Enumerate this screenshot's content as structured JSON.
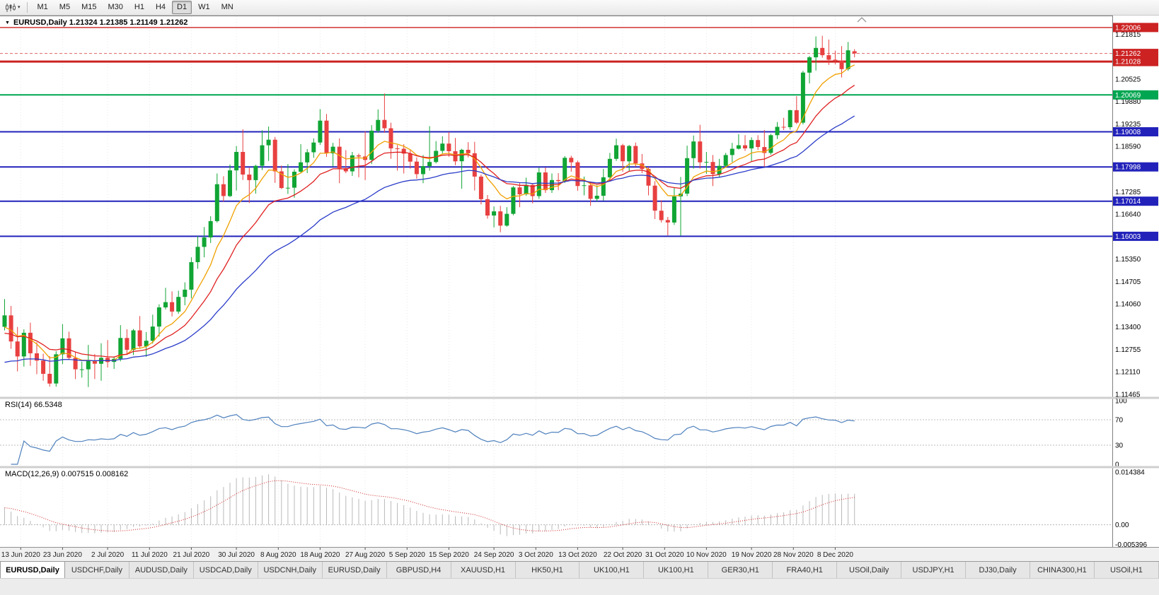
{
  "toolbar": {
    "timeframes": [
      "M1",
      "M5",
      "M15",
      "M30",
      "H1",
      "H4",
      "D1",
      "W1",
      "MN"
    ],
    "selected": "D1"
  },
  "icons": {
    "title_arrow": "▼",
    "toolbar_caret": "▾"
  },
  "chart": {
    "title": "EURUSD,Daily 1.21324 1.21385 1.21149 1.21262",
    "symbol": "EURUSD",
    "timeframe": "Daily",
    "open": "1.21324",
    "high": "1.21385",
    "low": "1.21149",
    "close": "1.21262"
  },
  "chart_data": {
    "type": "candlestick",
    "title": "EURUSD Daily candlestick chart with moving averages, horizontal levels, RSI(14) and MACD(12,26,9)",
    "style": {
      "up": "#10a534",
      "down": "#e84040",
      "grid": "#e8e8e8",
      "current_line": "#dd6666",
      "current_tag": "#cc2222",
      "macd_hist": "#b9b9b9",
      "macd_signal": "#d02020"
    },
    "price": {
      "ylim": [
        1.114,
        1.2233
      ],
      "current": 1.21262,
      "axis_labels": [
        1.21815,
        1.20525,
        1.1988,
        1.19235,
        1.1859,
        1.17285,
        1.1664,
        1.1535,
        1.14705,
        1.1406,
        1.134,
        1.12755,
        1.1211,
        1.11465
      ],
      "hlines": [
        {
          "value": 1.22006,
          "color": "#cc2222",
          "width": 1.4
        },
        {
          "value": 1.21028,
          "color": "#cc2222",
          "width": 3
        },
        {
          "value": 1.20069,
          "color": "#00a651",
          "width": 2
        },
        {
          "value": 1.19008,
          "color": "#2222bb",
          "width": 2
        },
        {
          "value": 1.17998,
          "color": "#2222bb",
          "width": 2
        },
        {
          "value": 1.17014,
          "color": "#2222bb",
          "width": 2
        },
        {
          "value": 1.16003,
          "color": "#2222bb",
          "width": 2
        }
      ],
      "ma": [
        {
          "period": 8,
          "seed": 1.133,
          "color": "#f0a000"
        },
        {
          "period": 16,
          "seed": 1.1315,
          "color": "#e02020"
        },
        {
          "period": 34,
          "seed": 1.123,
          "color": "#2b3cc8"
        }
      ],
      "candles": [
        [
          1.134,
          1.142,
          1.133,
          1.1373
        ],
        [
          1.1373,
          1.14,
          1.1277,
          1.1298
        ],
        [
          1.1298,
          1.134,
          1.1212,
          1.1255
        ],
        [
          1.1255,
          1.1333,
          1.1226,
          1.1323
        ],
        [
          1.1323,
          1.1352,
          1.1228,
          1.1264
        ],
        [
          1.1264,
          1.1296,
          1.1204,
          1.1243
        ],
        [
          1.1243,
          1.1263,
          1.1185,
          1.1205
        ],
        [
          1.1205,
          1.1256,
          1.1168,
          1.1177
        ],
        [
          1.1177,
          1.127,
          1.1168,
          1.1261
        ],
        [
          1.1261,
          1.1348,
          1.1233,
          1.1307
        ],
        [
          1.1307,
          1.1326,
          1.1245,
          1.1251
        ],
        [
          1.1251,
          1.1268,
          1.119,
          1.1218
        ],
        [
          1.1218,
          1.124,
          1.1194,
          1.1218
        ],
        [
          1.1218,
          1.1288,
          1.1167,
          1.1242
        ],
        [
          1.1242,
          1.1262,
          1.119,
          1.1234
        ],
        [
          1.1234,
          1.1293,
          1.1185,
          1.1251
        ],
        [
          1.1251,
          1.1302,
          1.1223,
          1.1239
        ],
        [
          1.1239,
          1.1254,
          1.1219,
          1.1248
        ],
        [
          1.1248,
          1.1345,
          1.1241,
          1.1308
        ],
        [
          1.1308,
          1.1333,
          1.1259,
          1.1274
        ],
        [
          1.1274,
          1.1334,
          1.1259,
          1.133
        ],
        [
          1.133,
          1.1371,
          1.1277,
          1.1284
        ],
        [
          1.1284,
          1.1325,
          1.1254,
          1.13
        ],
        [
          1.13,
          1.1375,
          1.1292,
          1.1341
        ],
        [
          1.1341,
          1.1405,
          1.1312,
          1.1396
        ],
        [
          1.1396,
          1.1452,
          1.139,
          1.1411
        ],
        [
          1.1411,
          1.1442,
          1.137,
          1.1384
        ],
        [
          1.1384,
          1.1444,
          1.1378,
          1.1426
        ],
        [
          1.1426,
          1.1468,
          1.1402,
          1.1447
        ],
        [
          1.1447,
          1.154,
          1.1422,
          1.1526
        ],
        [
          1.1526,
          1.1601,
          1.1507,
          1.157
        ],
        [
          1.157,
          1.1627,
          1.154,
          1.1597
        ],
        [
          1.1597,
          1.1658,
          1.1581,
          1.1644
        ],
        [
          1.1644,
          1.1781,
          1.164,
          1.175
        ],
        [
          1.175,
          1.1773,
          1.17,
          1.1716
        ],
        [
          1.1716,
          1.1807,
          1.1713,
          1.179
        ],
        [
          1.179,
          1.186,
          1.1732,
          1.1843
        ],
        [
          1.1843,
          1.1908,
          1.1762,
          1.1778
        ],
        [
          1.1778,
          1.1797,
          1.1696,
          1.1762
        ],
        [
          1.1762,
          1.1806,
          1.1723,
          1.1803
        ],
        [
          1.1803,
          1.1905,
          1.1791,
          1.1862
        ],
        [
          1.1862,
          1.1916,
          1.1817,
          1.1878
        ],
        [
          1.1878,
          1.1886,
          1.1754,
          1.1787
        ],
        [
          1.1787,
          1.1804,
          1.1736,
          1.1739
        ],
        [
          1.1739,
          1.1808,
          1.1722,
          1.174
        ],
        [
          1.174,
          1.1793,
          1.1711,
          1.1786
        ],
        [
          1.1786,
          1.1865,
          1.1781,
          1.1813
        ],
        [
          1.1813,
          1.1851,
          1.1782,
          1.1842
        ],
        [
          1.1842,
          1.1882,
          1.1826,
          1.187
        ],
        [
          1.187,
          1.1966,
          1.1863,
          1.1933
        ],
        [
          1.1933,
          1.1952,
          1.1829,
          1.1839
        ],
        [
          1.1839,
          1.1869,
          1.1801,
          1.1858
        ],
        [
          1.1858,
          1.1882,
          1.1753,
          1.1796
        ],
        [
          1.1796,
          1.1848,
          1.1782,
          1.1787
        ],
        [
          1.1787,
          1.1843,
          1.1774,
          1.1833
        ],
        [
          1.1833,
          1.1838,
          1.177,
          1.183
        ],
        [
          1.183,
          1.1902,
          1.1762,
          1.182
        ],
        [
          1.182,
          1.192,
          1.1808,
          1.1904
        ],
        [
          1.1904,
          1.1965,
          1.1898,
          1.1935
        ],
        [
          1.1935,
          1.2011,
          1.1898,
          1.1911
        ],
        [
          1.1911,
          1.1927,
          1.1823,
          1.1853
        ],
        [
          1.1853,
          1.1863,
          1.1789,
          1.1852
        ],
        [
          1.1852,
          1.1865,
          1.1781,
          1.1838
        ],
        [
          1.1838,
          1.1848,
          1.1795,
          1.1815
        ],
        [
          1.1815,
          1.1827,
          1.1766,
          1.1779
        ],
        [
          1.1779,
          1.1834,
          1.1753,
          1.1802
        ],
        [
          1.1802,
          1.1917,
          1.1789,
          1.1814
        ],
        [
          1.1814,
          1.1874,
          1.181,
          1.1846
        ],
        [
          1.1846,
          1.1888,
          1.1839,
          1.1867
        ],
        [
          1.1867,
          1.19,
          1.1829,
          1.1845
        ],
        [
          1.1845,
          1.1883,
          1.1805,
          1.1816
        ],
        [
          1.1816,
          1.1852,
          1.1737,
          1.1849
        ],
        [
          1.1849,
          1.1871,
          1.1827,
          1.1839
        ],
        [
          1.1839,
          1.1872,
          1.1732,
          1.1772
        ],
        [
          1.1772,
          1.1778,
          1.1692,
          1.1707
        ],
        [
          1.1707,
          1.1719,
          1.1651,
          1.166
        ],
        [
          1.166,
          1.1686,
          1.1626,
          1.1672
        ],
        [
          1.1672,
          1.1688,
          1.1612,
          1.1631
        ],
        [
          1.1631,
          1.1684,
          1.1628,
          1.1665
        ],
        [
          1.1665,
          1.1745,
          1.1661,
          1.1741
        ],
        [
          1.1741,
          1.1755,
          1.1684,
          1.1721
        ],
        [
          1.1721,
          1.1769,
          1.1717,
          1.1748
        ],
        [
          1.1748,
          1.1751,
          1.1695,
          1.1716
        ],
        [
          1.1716,
          1.1798,
          1.1708,
          1.1784
        ],
        [
          1.1784,
          1.1798,
          1.1725,
          1.1733
        ],
        [
          1.1733,
          1.1781,
          1.1725,
          1.1762
        ],
        [
          1.1762,
          1.1782,
          1.1733,
          1.1759
        ],
        [
          1.1759,
          1.1831,
          1.1754,
          1.1826
        ],
        [
          1.1826,
          1.1832,
          1.1786,
          1.1813
        ],
        [
          1.1813,
          1.1818,
          1.1731,
          1.1745
        ],
        [
          1.1745,
          1.1772,
          1.1718,
          1.1747
        ],
        [
          1.1747,
          1.1758,
          1.1688,
          1.1708
        ],
        [
          1.1708,
          1.1747,
          1.1701,
          1.1717
        ],
        [
          1.1717,
          1.1794,
          1.1703,
          1.177
        ],
        [
          1.177,
          1.184,
          1.176,
          1.1823
        ],
        [
          1.1823,
          1.1881,
          1.1817,
          1.1862
        ],
        [
          1.1862,
          1.1866,
          1.1786,
          1.1816
        ],
        [
          1.1816,
          1.1863,
          1.1787,
          1.186
        ],
        [
          1.186,
          1.187,
          1.18,
          1.181
        ],
        [
          1.181,
          1.1837,
          1.1782,
          1.1794
        ],
        [
          1.1794,
          1.18,
          1.1718,
          1.1746
        ],
        [
          1.1746,
          1.1759,
          1.165,
          1.1674
        ],
        [
          1.1674,
          1.1704,
          1.164,
          1.1647
        ],
        [
          1.1647,
          1.1656,
          1.1603,
          1.164
        ],
        [
          1.164,
          1.174,
          1.1633,
          1.1715
        ],
        [
          1.1715,
          1.1771,
          1.1602,
          1.1723
        ],
        [
          1.1723,
          1.1861,
          1.1716,
          1.1825
        ],
        [
          1.1825,
          1.189,
          1.1795,
          1.1873
        ],
        [
          1.1873,
          1.1921,
          1.1795,
          1.1813
        ],
        [
          1.1813,
          1.1843,
          1.178,
          1.1814
        ],
        [
          1.1814,
          1.1834,
          1.1745,
          1.1779
        ],
        [
          1.1779,
          1.1823,
          1.177,
          1.1803
        ],
        [
          1.1803,
          1.184,
          1.1799,
          1.1834
        ],
        [
          1.1834,
          1.1869,
          1.1814,
          1.1852
        ],
        [
          1.1852,
          1.1894,
          1.185,
          1.1862
        ],
        [
          1.1862,
          1.1891,
          1.1846,
          1.1853
        ],
        [
          1.1853,
          1.1885,
          1.1815,
          1.1877
        ],
        [
          1.1877,
          1.1891,
          1.1849,
          1.1857
        ],
        [
          1.1857,
          1.1906,
          1.18,
          1.184
        ],
        [
          1.184,
          1.1895,
          1.1835,
          1.1891
        ],
        [
          1.1891,
          1.1929,
          1.188,
          1.1915
        ],
        [
          1.1915,
          1.1941,
          1.1906,
          1.1914
        ],
        [
          1.1914,
          1.1964,
          1.1907,
          1.1963
        ],
        [
          1.1963,
          1.2003,
          1.1923,
          1.1927
        ],
        [
          1.1927,
          1.2076,
          1.1922,
          1.2071
        ],
        [
          1.2071,
          1.2119,
          1.204,
          1.2115
        ],
        [
          1.2115,
          1.2175,
          1.2077,
          1.2142
        ],
        [
          1.2142,
          1.2177,
          1.2114,
          1.2121
        ],
        [
          1.2121,
          1.2166,
          1.2093,
          1.2108
        ],
        [
          1.2108,
          1.2134,
          1.2095,
          1.2106
        ],
        [
          1.2106,
          1.2147,
          1.2057,
          1.2081
        ],
        [
          1.2081,
          1.2159,
          1.2076,
          1.2135
        ],
        [
          1.21324,
          1.21385,
          1.21149,
          1.21262
        ]
      ]
    },
    "x_labels": [
      {
        "i": 2.5,
        "t": "13 Jun 2020"
      },
      {
        "i": 9,
        "t": "23 Jun 2020"
      },
      {
        "i": 16,
        "t": "2 Jul 2020"
      },
      {
        "i": 22.5,
        "t": "11 Jul 2020"
      },
      {
        "i": 29,
        "t": "21 Jul 2020"
      },
      {
        "i": 36,
        "t": "30 Jul 2020"
      },
      {
        "i": 42.5,
        "t": "8 Aug 2020"
      },
      {
        "i": 49,
        "t": "18 Aug 2020"
      },
      {
        "i": 56,
        "t": "27 Aug 2020"
      },
      {
        "i": 62.5,
        "t": "5 Sep 2020"
      },
      {
        "i": 69,
        "t": "15 Sep 2020"
      },
      {
        "i": 76,
        "t": "24 Sep 2020"
      },
      {
        "i": 82.5,
        "t": "3 Oct 2020"
      },
      {
        "i": 89,
        "t": "13 Oct 2020"
      },
      {
        "i": 96,
        "t": "22 Oct 2020"
      },
      {
        "i": 102.5,
        "t": "31 Oct 2020"
      },
      {
        "i": 109,
        "t": "10 Nov 2020"
      },
      {
        "i": 116,
        "t": "19 Nov 2020"
      },
      {
        "i": 122.5,
        "t": "28 Nov 2020"
      },
      {
        "i": 129,
        "t": "8 Dec 2020"
      }
    ],
    "rsi": {
      "label": "RSI(14) 66.5348",
      "period": 14,
      "value": 66.5348,
      "levels": [
        70,
        30
      ],
      "axis": [
        100,
        70,
        30,
        0
      ],
      "color": "#4f81bd"
    },
    "macd": {
      "label": "MACD(12,26,9) 0.007515 0.008162",
      "fast": 12,
      "slow": 26,
      "signal": 9,
      "fast_seed": 1.1393,
      "slow_seed": 1.1341,
      "value": 0.007515,
      "signal_value": 0.008162,
      "ylim": [
        -0.0055,
        0.015
      ],
      "axis": [
        0.014384,
        0,
        -0.005396
      ]
    }
  },
  "tabs": {
    "items": [
      "EURUSD,Daily",
      "USDCHF,Daily",
      "AUDUSD,Daily",
      "USDCAD,Daily",
      "USDCNH,Daily",
      "EURUSD,Daily",
      "GBPUSD,H4",
      "XAUUSD,H1",
      "HK50,H1",
      "UK100,H1",
      "UK100,H1",
      "GER30,H1",
      "FRA40,H1",
      "USOil,Daily",
      "USDJPY,H1",
      "DJ30,Daily",
      "CHINA300,H1",
      "USOil,H1"
    ],
    "selected_index": 0
  }
}
